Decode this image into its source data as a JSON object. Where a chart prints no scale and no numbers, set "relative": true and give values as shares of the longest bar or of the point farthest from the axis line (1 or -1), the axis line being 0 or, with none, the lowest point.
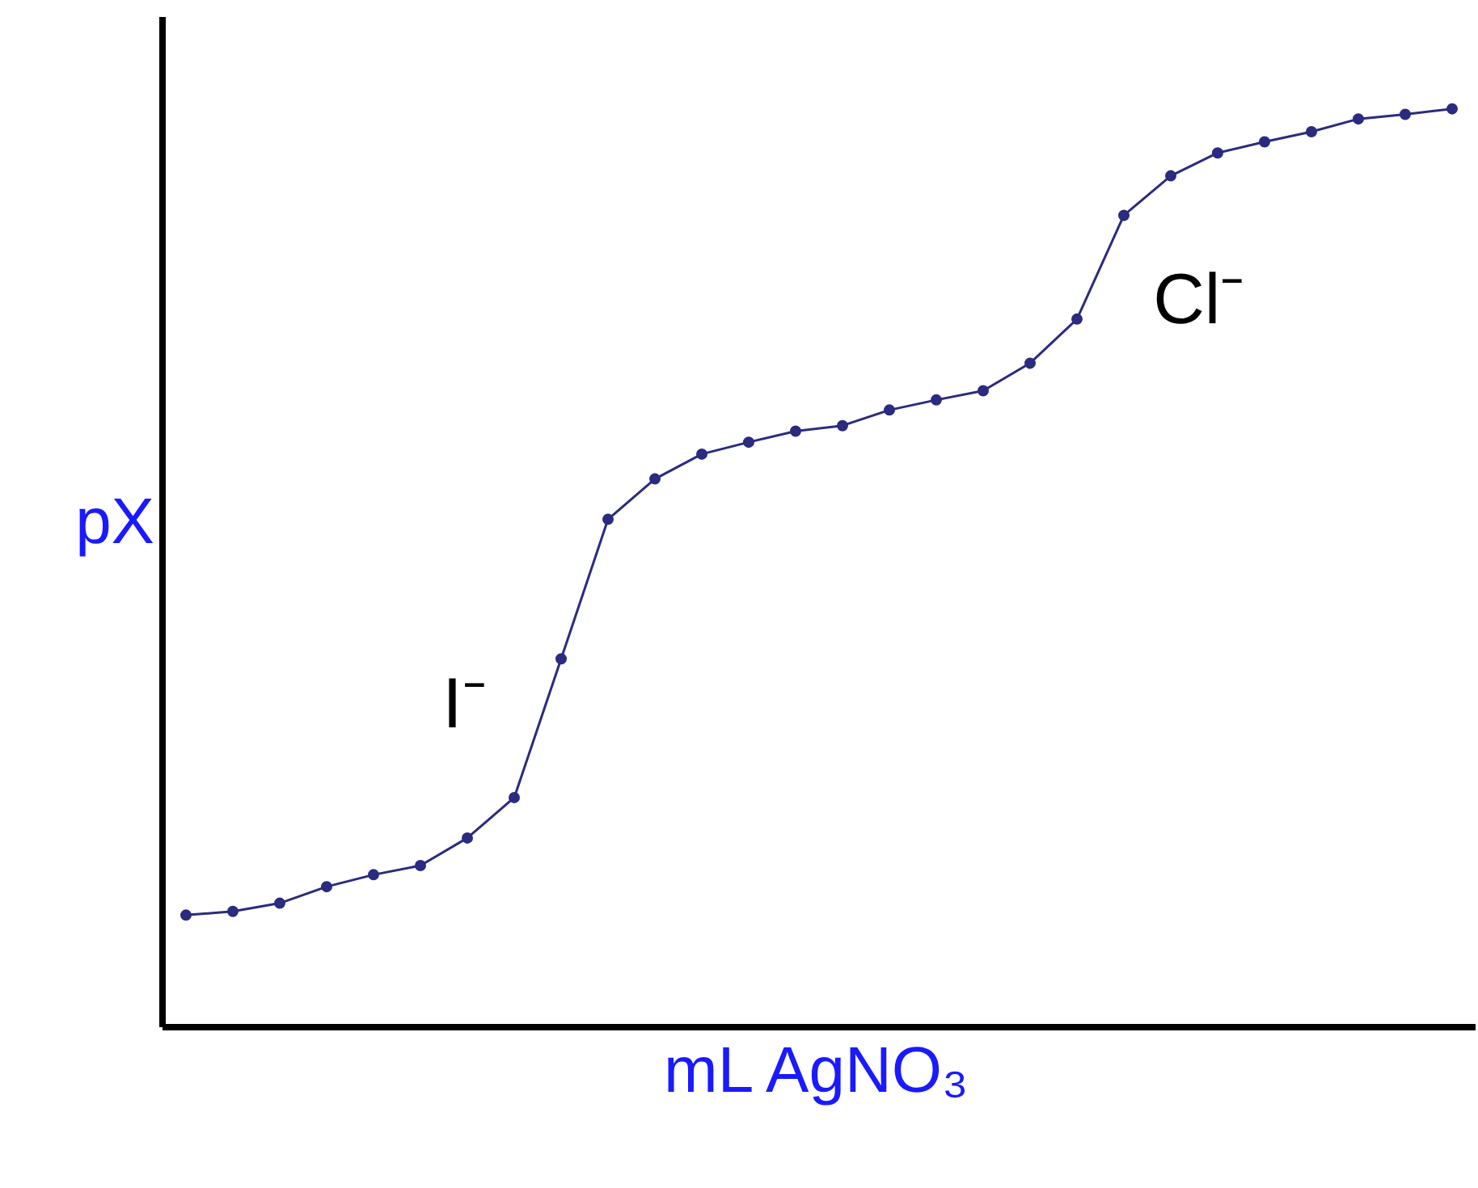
{
  "chart_data": {
    "type": "line",
    "relative": true,
    "xlabel": "mL AgNO₃",
    "ylabel": "pX",
    "marker": "circle",
    "line_style": "solid",
    "categories": [
      null,
      null,
      null,
      null,
      null,
      null,
      null,
      null,
      null,
      null,
      null,
      null,
      null,
      null,
      null,
      null,
      null,
      null,
      null,
      null,
      null,
      null,
      null,
      null,
      null,
      null,
      null,
      null
    ],
    "series": [
      {
        "color": "#2b2b80",
        "values": [
          0.122,
          0.126,
          0.135,
          0.153,
          0.166,
          0.176,
          0.206,
          0.25,
          0.401,
          0.553,
          0.597,
          0.624,
          0.637,
          0.649,
          0.655,
          0.672,
          0.683,
          0.693,
          0.723,
          0.771,
          0.884,
          0.927,
          0.952,
          0.964,
          0.975,
          0.989,
          0.994,
          1.0
        ]
      }
    ],
    "annotations": [
      "I⁻",
      "Cl⁻"
    ]
  }
}
